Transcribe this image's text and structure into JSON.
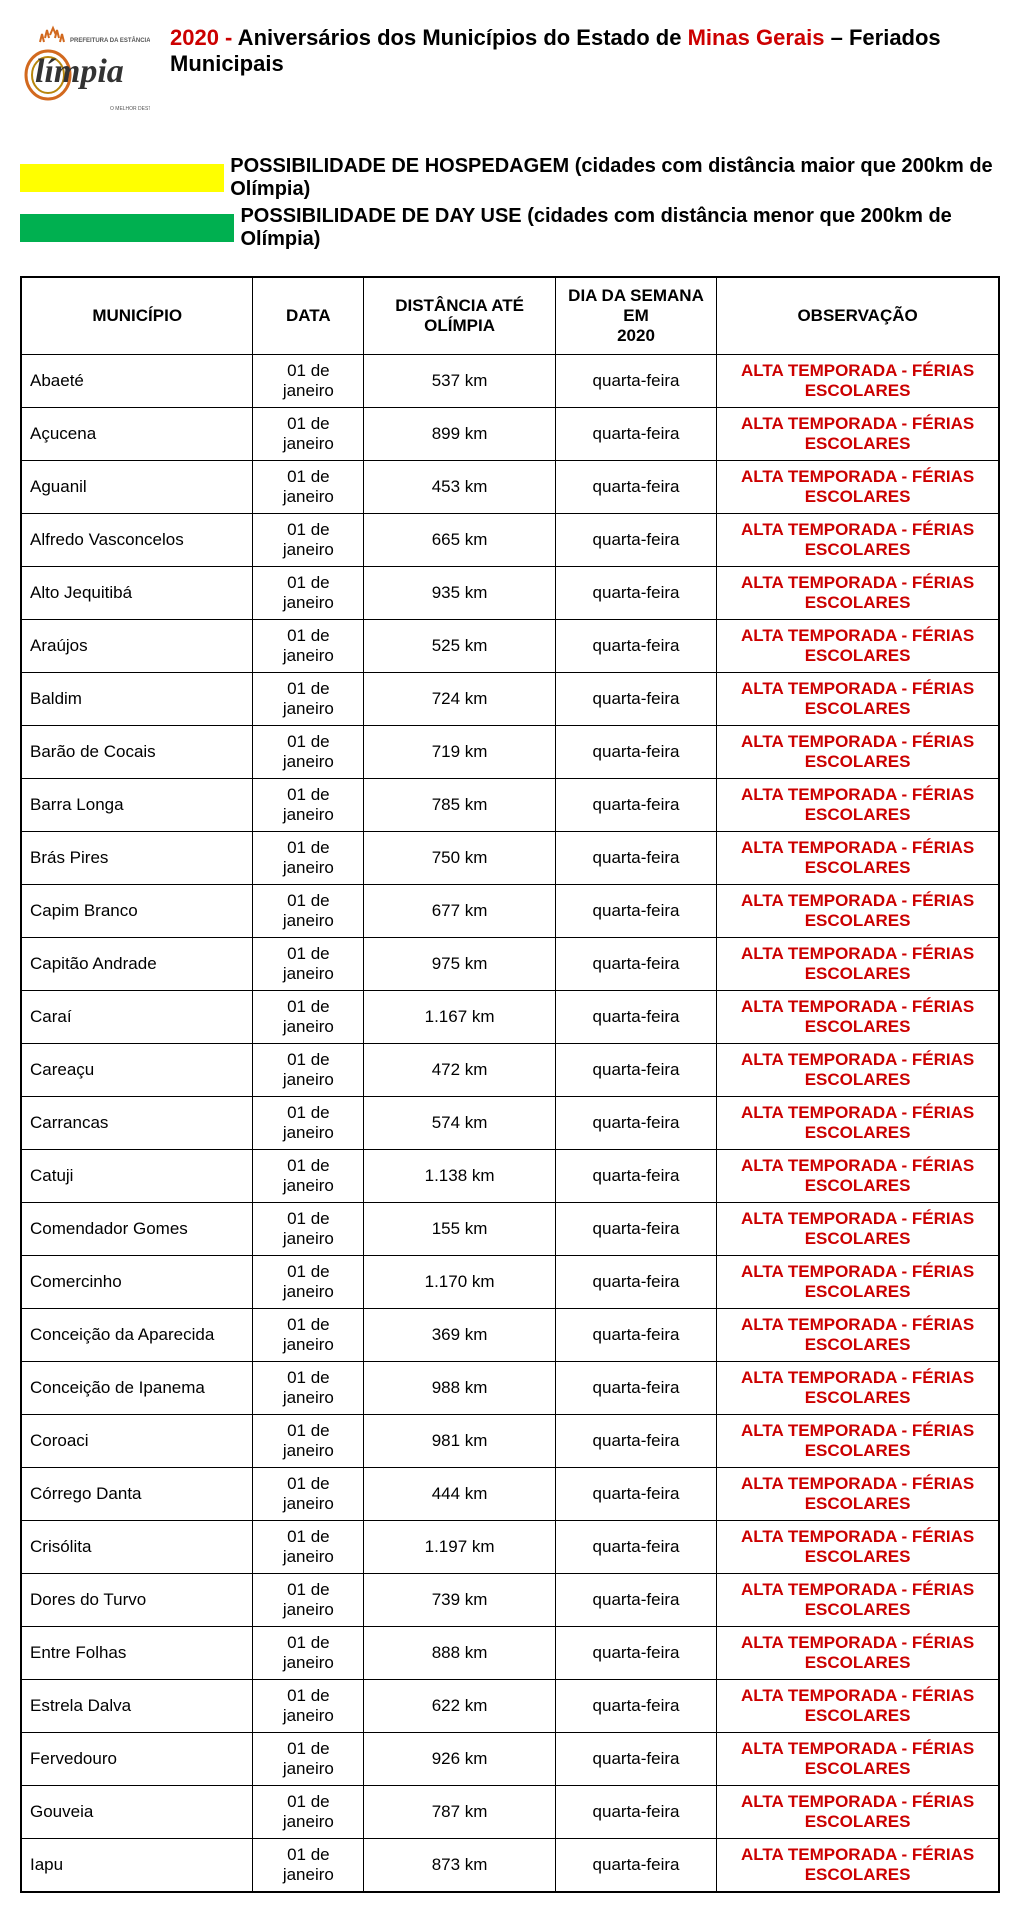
{
  "title": {
    "year": "2020 -",
    "mid1": " Aniversários dos Municípios do Estado de ",
    "state": "Minas Gerais",
    "mid2": " – Feriados Municipais"
  },
  "legend": {
    "swatch1_color": "#ffff00",
    "text1": "POSSIBILIDADE DE HOSPEDAGEM (cidades com distância maior que 200km de Olímpia)",
    "swatch2_color": "#00b050",
    "text2": "POSSIBILIDADE DE DAY USE (cidades com distância menor que 200km de Olímpia)"
  },
  "table": {
    "headers": {
      "municipio": "MUNICÍPIO",
      "data": "DATA",
      "distancia": "DISTÂNCIA ATÉ OLÍMPIA",
      "dia_l1": "DIA DA SEMANA EM",
      "dia_l2": "2020",
      "observacao": "OBSERVAÇÃO"
    },
    "obs_text": "ALTA TEMPORADA - FÉRIAS ESCOLARES",
    "rows": [
      {
        "m": "Abaeté",
        "d": "01 de janeiro",
        "dist": "537 km",
        "dia": "quarta-feira"
      },
      {
        "m": "Açucena",
        "d": "01 de janeiro",
        "dist": "899 km",
        "dia": "quarta-feira"
      },
      {
        "m": "Aguanil",
        "d": "01 de janeiro",
        "dist": "453 km",
        "dia": "quarta-feira"
      },
      {
        "m": "Alfredo Vasconcelos",
        "d": "01 de janeiro",
        "dist": "665 km",
        "dia": "quarta-feira"
      },
      {
        "m": "Alto Jequitibá",
        "d": "01 de janeiro",
        "dist": "935 km",
        "dia": "quarta-feira"
      },
      {
        "m": "Araújos",
        "d": "01 de janeiro",
        "dist": "525 km",
        "dia": "quarta-feira"
      },
      {
        "m": "Baldim",
        "d": "01 de janeiro",
        "dist": "724 km",
        "dia": "quarta-feira"
      },
      {
        "m": "Barão de Cocais",
        "d": "01 de janeiro",
        "dist": "719 km",
        "dia": "quarta-feira"
      },
      {
        "m": "Barra Longa",
        "d": "01 de janeiro",
        "dist": "785 km",
        "dia": "quarta-feira"
      },
      {
        "m": "Brás Pires",
        "d": "01 de janeiro",
        "dist": "750 km",
        "dia": "quarta-feira"
      },
      {
        "m": "Capim Branco",
        "d": "01 de janeiro",
        "dist": "677 km",
        "dia": "quarta-feira"
      },
      {
        "m": "Capitão Andrade",
        "d": "01 de janeiro",
        "dist": "975 km",
        "dia": "quarta-feira"
      },
      {
        "m": "Caraí",
        "d": "01 de janeiro",
        "dist": "1.167 km",
        "dia": "quarta-feira"
      },
      {
        "m": "Careaçu",
        "d": "01 de janeiro",
        "dist": "472 km",
        "dia": "quarta-feira"
      },
      {
        "m": "Carrancas",
        "d": "01 de janeiro",
        "dist": "574 km",
        "dia": "quarta-feira"
      },
      {
        "m": "Catuji",
        "d": "01 de janeiro",
        "dist": "1.138 km",
        "dia": "quarta-feira"
      },
      {
        "m": "Comendador Gomes",
        "d": "01 de janeiro",
        "dist": "155 km",
        "dia": "quarta-feira"
      },
      {
        "m": "Comercinho",
        "d": "01 de janeiro",
        "dist": "1.170 km",
        "dia": "quarta-feira"
      },
      {
        "m": "Conceição da Aparecida",
        "d": "01 de janeiro",
        "dist": "369 km",
        "dia": "quarta-feira"
      },
      {
        "m": "Conceição de Ipanema",
        "d": "01 de janeiro",
        "dist": "988 km",
        "dia": "quarta-feira"
      },
      {
        "m": "Coroaci",
        "d": "01 de janeiro",
        "dist": "981 km",
        "dia": "quarta-feira"
      },
      {
        "m": "Córrego Danta",
        "d": "01 de janeiro",
        "dist": "444 km",
        "dia": "quarta-feira"
      },
      {
        "m": "Crisólita",
        "d": "01 de janeiro",
        "dist": "1.197 km",
        "dia": "quarta-feira"
      },
      {
        "m": "Dores do Turvo",
        "d": "01 de janeiro",
        "dist": "739 km",
        "dia": "quarta-feira"
      },
      {
        "m": "Entre Folhas",
        "d": "01 de janeiro",
        "dist": "888 km",
        "dia": "quarta-feira"
      },
      {
        "m": "Estrela Dalva",
        "d": "01 de janeiro",
        "dist": "622 km",
        "dia": "quarta-feira"
      },
      {
        "m": "Fervedouro",
        "d": "01 de janeiro",
        "dist": "926 km",
        "dia": "quarta-feira"
      },
      {
        "m": "Gouveia",
        "d": "01 de janeiro",
        "dist": "787 km",
        "dia": "quarta-feira"
      },
      {
        "m": "Iapu",
        "d": "01 de janeiro",
        "dist": "873 km",
        "dia": "quarta-feira"
      }
    ]
  },
  "colors": {
    "red_text": "#cc0000",
    "border": "#000000",
    "bg": "#ffffff"
  }
}
